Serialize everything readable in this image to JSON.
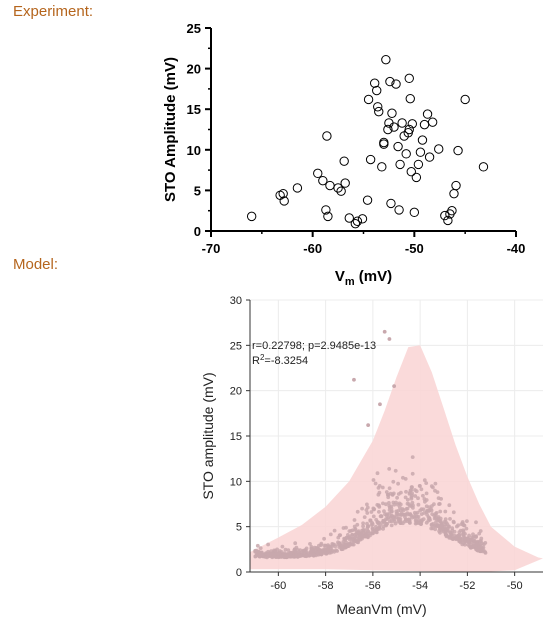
{
  "labels": {
    "experiment": "Experiment:",
    "model": "Model:"
  },
  "colors": {
    "section_label": "#b5651d",
    "exp_marker": "#000000",
    "model_points": "#c8a8ad",
    "model_band": "#f9d6d6"
  },
  "chart_data": [
    {
      "type": "scatter",
      "title": "",
      "xlabel_base": "V",
      "xlabel_sub": "m",
      "xlabel_unit": " (mV)",
      "ylabel": "STO Amplitude (mV)",
      "xlim": [
        -70,
        -40
      ],
      "ylim": [
        0,
        25
      ],
      "xticks": [
        -70,
        -60,
        -50,
        -40
      ],
      "xtick_labels": [
        "-70",
        "-60",
        "-50",
        "-40"
      ],
      "yticks": [
        0,
        5,
        10,
        15,
        20,
        25
      ],
      "ytick_labels": [
        "0",
        "5",
        "10",
        "15",
        "20",
        "25"
      ],
      "grid": false,
      "marker": "open-circle",
      "x": [
        -66,
        -63.2,
        -62.8,
        -62.9,
        -61.5,
        -59.5,
        -59,
        -58.3,
        -58.7,
        -58.5,
        -57.2,
        -56.9,
        -56.4,
        -55.6,
        -55.1,
        -54.5,
        -54.3,
        -53.9,
        -53.7,
        -53.6,
        -53.5,
        -53.2,
        -53,
        -52.8,
        -52.6,
        -52.5,
        -52.4,
        -52.2,
        -52,
        -51.8,
        -51.6,
        -51.4,
        -51.2,
        -51,
        -50.8,
        -50.6,
        -50.5,
        -50.4,
        -50.2,
        -50,
        -49.8,
        -49.6,
        -49.4,
        -49.2,
        -49,
        -48.7,
        -48.5,
        -48.2,
        -53,
        -51.5,
        -50.3,
        -47.6,
        -47,
        -46.7,
        -46.5,
        -46.3,
        -46.1,
        -45.9,
        -45.7,
        -45,
        -43.2,
        -52.3,
        -54.6,
        -57.5,
        -58.6,
        -50.5,
        -56.8,
        -55.8
      ],
      "y": [
        1.8,
        4.4,
        3.7,
        4.6,
        5.3,
        7.1,
        6.2,
        5.6,
        2.6,
        1.8,
        4.9,
        8.6,
        1.6,
        1.2,
        1.5,
        16.2,
        8.8,
        18.2,
        17.3,
        15.3,
        14.7,
        7.9,
        10.7,
        21.1,
        12.5,
        13.3,
        18.4,
        14.5,
        12.8,
        18.1,
        10.4,
        8.2,
        13.3,
        11.7,
        9.5,
        12.1,
        12.5,
        16.3,
        13.2,
        2.3,
        6.6,
        8.2,
        9.7,
        11.2,
        13.1,
        14.4,
        9.1,
        13.4,
        10.9,
        2.6,
        7.3,
        10.1,
        1.9,
        1.3,
        2.1,
        2.5,
        4.6,
        5.6,
        9.9,
        16.2,
        7.9,
        3.4,
        3.8,
        5.3,
        11.7,
        18.8,
        5.9,
        0.9
      ]
    },
    {
      "type": "scatter",
      "title": "",
      "xlabel": "MeanVm (mV)",
      "ylabel": "STO amplitude (mV)",
      "xlim": [
        -61.2,
        -48.8
      ],
      "ylim": [
        0,
        30
      ],
      "xticks": [
        -60,
        -58,
        -56,
        -54,
        -52,
        -50
      ],
      "xtick_labels": [
        "-60",
        "-58",
        "-56",
        "-54",
        "-52",
        "-50"
      ],
      "yticks": [
        0,
        5,
        10,
        15,
        20,
        25,
        30
      ],
      "ytick_labels": [
        "0",
        "5",
        "10",
        "15",
        "20",
        "25",
        "30"
      ],
      "grid": true,
      "annotations": [
        "r=0.22798; p=2.9485e-13",
        "R",
        "2",
        "=-8.3254"
      ],
      "band_upper": {
        "x": [
          -61.2,
          -60,
          -59,
          -58,
          -57,
          -56,
          -55.5,
          -55,
          -54.5,
          -54,
          -53.5,
          -53,
          -52.5,
          -52,
          -51.5,
          -51,
          -50,
          -49,
          -48.8
        ],
        "y": [
          2.2,
          3.8,
          5.2,
          7.2,
          10,
          14.5,
          17.8,
          21.5,
          24.8,
          25,
          22,
          18,
          14,
          10.5,
          7.5,
          5,
          2.8,
          1.6,
          1.5
        ]
      },
      "band_lower": {
        "x": [
          -48.8,
          -50,
          -51,
          -52,
          -53,
          -54,
          -55,
          -56,
          -57,
          -58,
          -59,
          -60,
          -61.2
        ],
        "y": [
          1.5,
          0.2,
          0.05,
          0.05,
          0.05,
          0.1,
          0.15,
          0.2,
          0.25,
          0.3,
          0.3,
          0.3,
          0.3
        ]
      },
      "outliers": {
        "x": [
          -56.8,
          -55.5,
          -55.3,
          -55.1,
          -55.7,
          -56.2
        ],
        "y": [
          21.2,
          26.5,
          25.7,
          20.5,
          18.5,
          16.2
        ]
      },
      "cloud_description_points": 900
    }
  ]
}
